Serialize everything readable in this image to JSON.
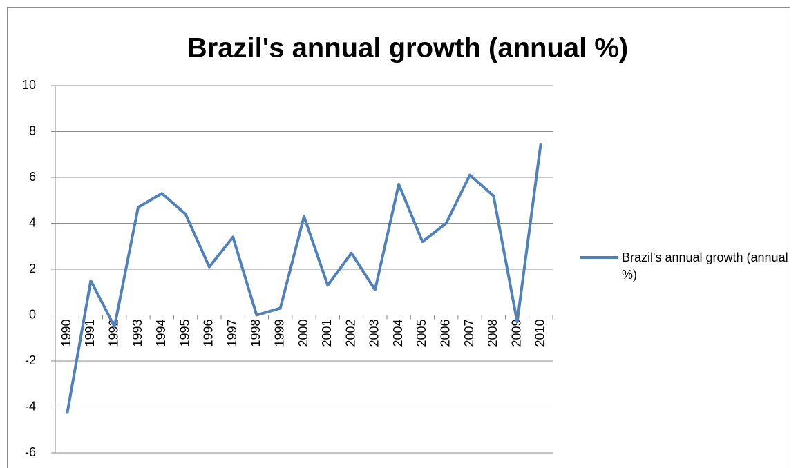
{
  "chart_data": {
    "type": "line",
    "title": "Brazil's annual growth (annual %)",
    "categories": [
      "1990",
      "1991",
      "1992",
      "1993",
      "1994",
      "1995",
      "1996",
      "1997",
      "1998",
      "1999",
      "2000",
      "2001",
      "2002",
      "2003",
      "2004",
      "2005",
      "2006",
      "2007",
      "2008",
      "2009",
      "2010"
    ],
    "series": [
      {
        "name": "Brazil's annual growth (annual %)",
        "color": "#4f81bd",
        "values": [
          -4.3,
          1.5,
          -0.5,
          4.7,
          5.3,
          4.4,
          2.1,
          3.4,
          0.0,
          0.3,
          4.3,
          1.3,
          2.7,
          1.1,
          5.7,
          3.2,
          4.0,
          6.1,
          5.2,
          -0.3,
          7.5
        ]
      }
    ],
    "ylim": [
      -6,
      10
    ],
    "yticks": [
      -6,
      -4,
      -2,
      0,
      2,
      4,
      6,
      8,
      10
    ],
    "grid": true,
    "legend": "right"
  }
}
